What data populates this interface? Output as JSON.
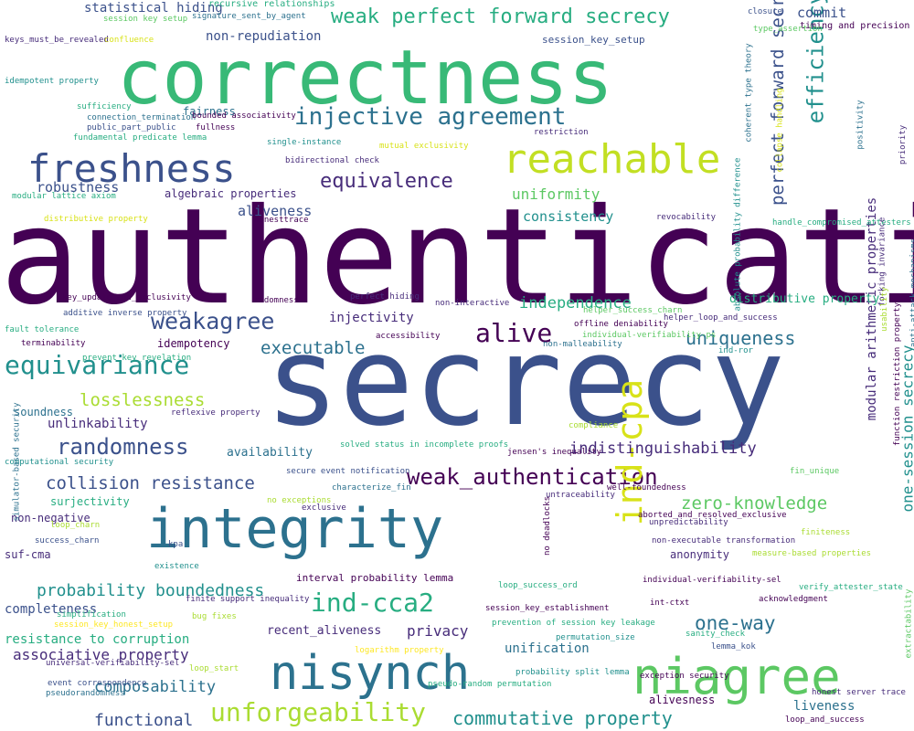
{
  "palette": [
    "#440154",
    "#472c7a",
    "#3b518b",
    "#2c718e",
    "#21908d",
    "#27ad81",
    "#5cc863",
    "#aadc32",
    "#fde725"
  ],
  "words": [
    {
      "text": "authentication",
      "color": "#440154"
    },
    {
      "text": "secrecy",
      "color": "#3b518b"
    },
    {
      "text": "correctness",
      "color": "#38b977"
    },
    {
      "text": "integrity",
      "color": "#2c718e"
    },
    {
      "text": "nisynch",
      "color": "#2c728e"
    },
    {
      "text": "niagree",
      "color": "#5cc863"
    },
    {
      "text": "freshness",
      "color": "#3b518b"
    },
    {
      "text": "reachable",
      "color": "#c2df23"
    },
    {
      "text": "injective agreement",
      "color": "#2c718e"
    },
    {
      "text": "weak perfect forward secrecy",
      "color": "#27ad81"
    },
    {
      "text": "equivariance",
      "color": "#21908d"
    },
    {
      "text": "weakagree",
      "color": "#3b518b"
    },
    {
      "text": "weak_authentication",
      "color": "#440154"
    },
    {
      "text": "ind-cca2",
      "color": "#27ad81"
    },
    {
      "text": "ind-cpa",
      "color": "#d8e219"
    },
    {
      "text": "equivalence",
      "color": "#472c7a"
    },
    {
      "text": "efficiency",
      "color": "#21908d"
    },
    {
      "text": "perfect forward secrecy",
      "color": "#3b518b"
    },
    {
      "text": "unforgeability",
      "color": "#aadc32"
    },
    {
      "text": "commutative property",
      "color": "#21908d"
    },
    {
      "text": "randomness",
      "color": "#3b518b"
    },
    {
      "text": "collision resistance",
      "color": "#3b518b"
    },
    {
      "text": "alive",
      "color": "#440154"
    },
    {
      "text": "one-way",
      "color": "#2c718e"
    },
    {
      "text": "uniqueness",
      "color": "#2c718e"
    },
    {
      "text": "probability boundedness",
      "color": "#21908d"
    },
    {
      "text": "zero-knowledge",
      "color": "#5cc863"
    },
    {
      "text": "losslessness",
      "color": "#aadc32"
    },
    {
      "text": "indistinguishability",
      "color": "#472c7a"
    },
    {
      "text": "executable",
      "color": "#2c718e"
    },
    {
      "text": "independence",
      "color": "#27ad81"
    },
    {
      "text": "associative property",
      "color": "#472c7a"
    },
    {
      "text": "composability",
      "color": "#2c718e"
    },
    {
      "text": "privacy",
      "color": "#472c7a"
    },
    {
      "text": "functional",
      "color": "#3b518b"
    },
    {
      "text": "modular arithmetic properties",
      "color": "#472c7a"
    },
    {
      "text": "one-session secrecy",
      "color": "#21908d"
    },
    {
      "text": "uniformity",
      "color": "#5cc863"
    },
    {
      "text": "aliveness",
      "color": "#3b518b"
    },
    {
      "text": "consistency",
      "color": "#21908d"
    },
    {
      "text": "injectivity",
      "color": "#472c7a"
    },
    {
      "text": "robustness",
      "color": "#3b518b"
    },
    {
      "text": "commit",
      "color": "#3b518b"
    },
    {
      "text": "statistical hiding",
      "color": "#3b518b"
    },
    {
      "text": "non-repudiation",
      "color": "#3b518b"
    },
    {
      "text": "recent_aliveness",
      "color": "#472c7a"
    },
    {
      "text": "unification",
      "color": "#2c718e"
    },
    {
      "text": "completeness",
      "color": "#3b518b"
    },
    {
      "text": "resistance to corruption",
      "color": "#27ad81"
    },
    {
      "text": "liveness",
      "color": "#2c718e"
    },
    {
      "text": "unlinkability",
      "color": "#472c7a"
    },
    {
      "text": "availability",
      "color": "#2c718e"
    },
    {
      "text": "distributive property",
      "color": "#27ad81"
    },
    {
      "text": "anonymity",
      "color": "#472c7a"
    },
    {
      "text": "fairness",
      "color": "#2c718e"
    },
    {
      "text": "surjectivity",
      "color": "#27ad81"
    },
    {
      "text": "idempotency",
      "color": "#440154"
    },
    {
      "text": "soundness",
      "color": "#2c718e"
    },
    {
      "text": "algebraic properties",
      "color": "#472c7a"
    },
    {
      "text": "suf-cma",
      "color": "#472c7a"
    },
    {
      "text": "non-negative",
      "color": "#472c7a"
    },
    {
      "text": "alivesness",
      "color": "#440154"
    },
    {
      "text": "session_key_setup",
      "color": "#3b518b"
    },
    {
      "text": "interval probability lemma",
      "color": "#440154"
    },
    {
      "text": "recursive relationships",
      "color": "#27ad81"
    },
    {
      "text": "session key setup",
      "color": "#5cc863"
    },
    {
      "text": "signature_sent_by_agent",
      "color": "#2c718e"
    },
    {
      "text": "closure",
      "color": "#3b518b"
    },
    {
      "text": "timing and precision",
      "color": "#440154"
    },
    {
      "text": "keys_must_be_revealed",
      "color": "#472c7a"
    },
    {
      "text": "confluence",
      "color": "#d8e219"
    },
    {
      "text": "type_assertion",
      "color": "#5cc863"
    },
    {
      "text": "idempotent property",
      "color": "#21908d"
    },
    {
      "text": "sufficiency",
      "color": "#27ad81"
    },
    {
      "text": "connection_termination",
      "color": "#2c718e"
    },
    {
      "text": "bounded associativity",
      "color": "#440154"
    },
    {
      "text": "public_part_public",
      "color": "#3b518b"
    },
    {
      "text": "fullness",
      "color": "#440154"
    },
    {
      "text": "fundamental predicate lemma",
      "color": "#27ad81"
    },
    {
      "text": "restriction",
      "color": "#472c7a"
    },
    {
      "text": "single-instance",
      "color": "#21908d"
    },
    {
      "text": "mutual exclusivity",
      "color": "#d8e219"
    },
    {
      "text": "bidirectional check",
      "color": "#472c7a"
    },
    {
      "text": "modular lattice axiom",
      "color": "#27ad81"
    },
    {
      "text": "distributive property",
      "color": "#d8e219"
    },
    {
      "text": "honesttrace",
      "color": "#440154"
    },
    {
      "text": "revocability",
      "color": "#472c7a"
    },
    {
      "text": "handle_compromised_attesters",
      "color": "#27ad81"
    },
    {
      "text": "key_update_and_exclusivity",
      "color": "#440154"
    },
    {
      "text": "rodomness",
      "color": "#440154"
    },
    {
      "text": "perfect hiding",
      "color": "#472c7a"
    },
    {
      "text": "non-interactive",
      "color": "#472c7a"
    },
    {
      "text": "additive inverse property",
      "color": "#3b518b"
    },
    {
      "text": "helper_success_charn",
      "color": "#5cc863"
    },
    {
      "text": "offline deniability",
      "color": "#440154"
    },
    {
      "text": "helper_loop_and_success",
      "color": "#472c7a"
    },
    {
      "text": "fault tolerance",
      "color": "#27ad81"
    },
    {
      "text": "accessibility",
      "color": "#440154"
    },
    {
      "text": "individual-verifiability-ps",
      "color": "#5cc863"
    },
    {
      "text": "terminability",
      "color": "#440154"
    },
    {
      "text": "non-malleability",
      "color": "#2c718e"
    },
    {
      "text": "ind-ror",
      "color": "#21908d"
    },
    {
      "text": "prevent_key_revelation",
      "color": "#27ad81"
    },
    {
      "text": "reflexive property",
      "color": "#472c7a"
    },
    {
      "text": "compliance",
      "color": "#aadc32"
    },
    {
      "text": "solved status in incomplete proofs",
      "color": "#27ad81"
    },
    {
      "text": "jensen's inequality",
      "color": "#440154"
    },
    {
      "text": "computational security",
      "color": "#21908d"
    },
    {
      "text": "secure event notification",
      "color": "#3b518b"
    },
    {
      "text": "characterize_fin",
      "color": "#2c718e"
    },
    {
      "text": "fin_unique",
      "color": "#5cc863"
    },
    {
      "text": "well-foundedness",
      "color": "#440154"
    },
    {
      "text": "untraceability",
      "color": "#472c7a"
    },
    {
      "text": "no exceptions",
      "color": "#aadc32"
    },
    {
      "text": "exclusive",
      "color": "#472c7a"
    },
    {
      "text": "aborted_and_resolved_exclusive",
      "color": "#440154"
    },
    {
      "text": "unpredictability",
      "color": "#472c7a"
    },
    {
      "text": "loop_charn",
      "color": "#aadc32"
    },
    {
      "text": "success_charn",
      "color": "#3b518b"
    },
    {
      "text": "kpa",
      "color": "#3b518b"
    },
    {
      "text": "non-executable transformation",
      "color": "#472c7a"
    },
    {
      "text": "finiteness",
      "color": "#aadc32"
    },
    {
      "text": "measure-based properties",
      "color": "#aadc32"
    },
    {
      "text": "existence",
      "color": "#21908d"
    },
    {
      "text": "loop_success_ord",
      "color": "#27ad81"
    },
    {
      "text": "individual-verifiability-sel",
      "color": "#440154"
    },
    {
      "text": "verify_attester_state",
      "color": "#27ad81"
    },
    {
      "text": "finite support inequality",
      "color": "#472c7a"
    },
    {
      "text": "int-ctxt",
      "color": "#440154"
    },
    {
      "text": "acknowledgment",
      "color": "#440154"
    },
    {
      "text": "simplification",
      "color": "#27ad81"
    },
    {
      "text": "session_key_establishment",
      "color": "#440154"
    },
    {
      "text": "session_key_honest_setup",
      "color": "#fde725"
    },
    {
      "text": "bug fixes",
      "color": "#aadc32"
    },
    {
      "text": "prevention of session key leakage",
      "color": "#27ad81"
    },
    {
      "text": "permutation_size",
      "color": "#21908d"
    },
    {
      "text": "sanity_check",
      "color": "#27ad81"
    },
    {
      "text": "universal-verifiability-sel",
      "color": "#472c7a"
    },
    {
      "text": "logarithm property",
      "color": "#fde725"
    },
    {
      "text": "probability split lemma",
      "color": "#21908d"
    },
    {
      "text": "lemma_kok",
      "color": "#3b518b"
    },
    {
      "text": "loop_start",
      "color": "#aadc32"
    },
    {
      "text": "exception security",
      "color": "#440154"
    },
    {
      "text": "event correspondence",
      "color": "#3b518b"
    },
    {
      "text": "pseudorandomness",
      "color": "#2c718e"
    },
    {
      "text": "pseudo-random permutation",
      "color": "#27ad81"
    },
    {
      "text": "honest server trace",
      "color": "#472c7a"
    },
    {
      "text": "loop_and_success",
      "color": "#440154"
    },
    {
      "text": "extractability",
      "color": "#5cc863"
    },
    {
      "text": "coherent type theory",
      "color": "#2c718e"
    },
    {
      "text": "collapse handling",
      "color": "#d8e219"
    },
    {
      "text": "positivity",
      "color": "#2c718e"
    },
    {
      "text": "priority",
      "color": "#472c7a"
    },
    {
      "text": "absolute probability difference",
      "color": "#21908d"
    },
    {
      "text": "forking invariance",
      "color": "#472c7a"
    },
    {
      "text": "anti-attack mechanisms",
      "color": "#2c718e"
    },
    {
      "text": "usability",
      "color": "#aadc32"
    },
    {
      "text": "function restriction property",
      "color": "#440154"
    },
    {
      "text": "simulator-based security",
      "color": "#2c718e"
    },
    {
      "text": "no deadlocks",
      "color": "#440154"
    }
  ]
}
